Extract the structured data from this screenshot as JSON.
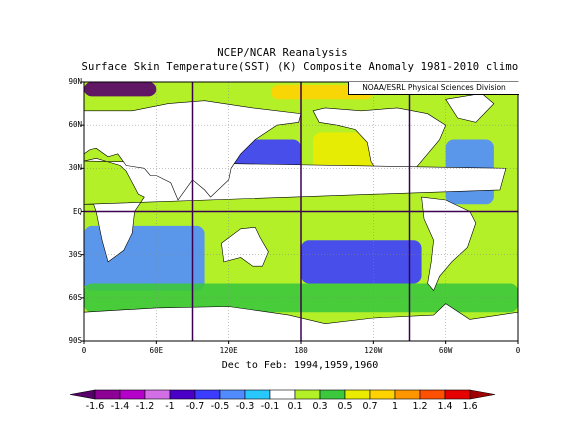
{
  "title": "NCEP/NCAR Reanalysis",
  "subtitle": "Surface Skin Temperature(SST) (K) Composite Anomaly 1981-2010 climo",
  "credit": "NOAA/ESRL Physical Sciences Division",
  "caption": "Dec to Feb: 1994,1959,1960",
  "lat_ticks": [
    "90N",
    "60N",
    "30N",
    "EQ",
    "30S",
    "60S",
    "90S"
  ],
  "lon_ticks": [
    "0",
    "60E",
    "120E",
    "180",
    "120W",
    "60W",
    "0"
  ],
  "colorbar": {
    "labels": [
      "-1.6",
      "-1.4",
      "-1.2",
      "-1",
      "-0.7",
      "-0.5",
      "-0.3",
      "-0.1",
      "0.1",
      "0.3",
      "0.5",
      "0.7",
      "1",
      "1.2",
      "1.4",
      "1.6"
    ],
    "colors": [
      "#58006a",
      "#8c0096",
      "#b400c8",
      "#d26ee6",
      "#4b00c8",
      "#3c3cff",
      "#508cff",
      "#28c8ff",
      "#ffffff",
      "#b4f028",
      "#3cc83c",
      "#ebeb00",
      "#ffd200",
      "#ff9600",
      "#ff5000",
      "#e60000",
      "#a00000"
    ]
  },
  "chart_data": {
    "type": "heatmap",
    "title": "NCEP/NCAR Reanalysis",
    "subtitle": "Surface Skin Temperature(SST) (K) Composite Anomaly 1981-2010 climo",
    "variable": "Surface Skin Temperature anomaly (K)",
    "lon_range": [
      0,
      360
    ],
    "lat_range": [
      -90,
      90
    ],
    "color_scale": "diverging purple-blue-white-yellow-red",
    "color_levels": [
      -1.6,
      -1.4,
      -1.2,
      -1,
      -0.7,
      -0.5,
      -0.3,
      -0.1,
      0.1,
      0.3,
      0.5,
      0.7,
      1,
      1.2,
      1.4,
      1.6
    ],
    "grid": true,
    "regions": [
      {
        "lon": [
          0,
          100
        ],
        "lat": [
          -55,
          -10
        ],
        "value": -0.4
      },
      {
        "lon": [
          120,
          180
        ],
        "lat": [
          15,
          50
        ],
        "value": -0.6
      },
      {
        "lon": [
          190,
          240
        ],
        "lat": [
          20,
          55
        ],
        "value": 0.6
      },
      {
        "lon": [
          180,
          280
        ],
        "lat": [
          -10,
          10
        ],
        "value": 0.2
      },
      {
        "lon": [
          180,
          280
        ],
        "lat": [
          -50,
          -20
        ],
        "value": -0.6
      },
      {
        "lon": [
          300,
          340
        ],
        "lat": [
          5,
          50
        ],
        "value": -0.4
      },
      {
        "lon": [
          155,
          240
        ],
        "lat": [
          78,
          88
        ],
        "value": 0.9
      },
      {
        "lon": [
          0,
          60
        ],
        "lat": [
          80,
          90
        ],
        "value": -1.6
      },
      {
        "lon": [
          0,
          360
        ],
        "lat": [
          -70,
          -50
        ],
        "value": 0.4
      }
    ]
  }
}
